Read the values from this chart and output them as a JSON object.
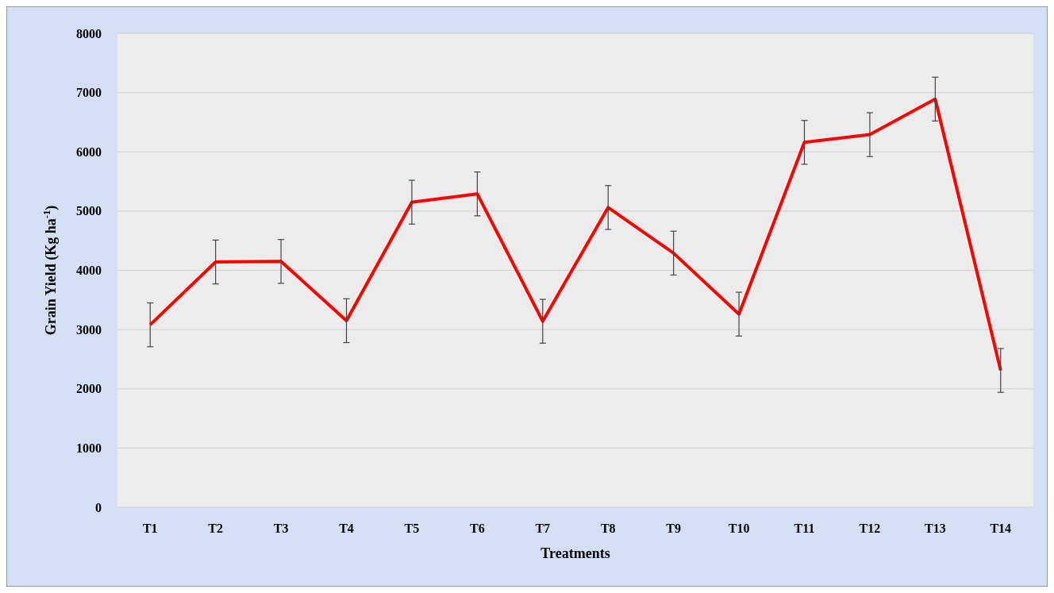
{
  "chart_data": {
    "type": "line",
    "xlabel": "Treatments",
    "ylabel": "Grain Yield (Kg ha$^{-1}$)",
    "categories": [
      "T1",
      "T2",
      "T3",
      "T4",
      "T5",
      "T6",
      "T7",
      "T8",
      "T9",
      "T10",
      "T11",
      "T12",
      "T13",
      "T14"
    ],
    "series": [
      {
        "color": "#ff0000",
        "values": [
          3080,
          4140,
          4150,
          3150,
          5150,
          5290,
          3140,
          5060,
          4290,
          3260,
          6160,
          6290,
          6890,
          2310
        ],
        "errors": [
          370,
          370,
          370,
          370,
          370,
          370,
          370,
          370,
          370,
          370,
          370,
          370,
          370,
          370
        ]
      }
    ],
    "ylim": [
      0,
      8000
    ],
    "yticks": [
      0,
      1000,
      2000,
      3000,
      4000,
      5000,
      6000,
      7000,
      8000
    ],
    "grid": "y",
    "marker": "none",
    "line_style": "solid"
  }
}
